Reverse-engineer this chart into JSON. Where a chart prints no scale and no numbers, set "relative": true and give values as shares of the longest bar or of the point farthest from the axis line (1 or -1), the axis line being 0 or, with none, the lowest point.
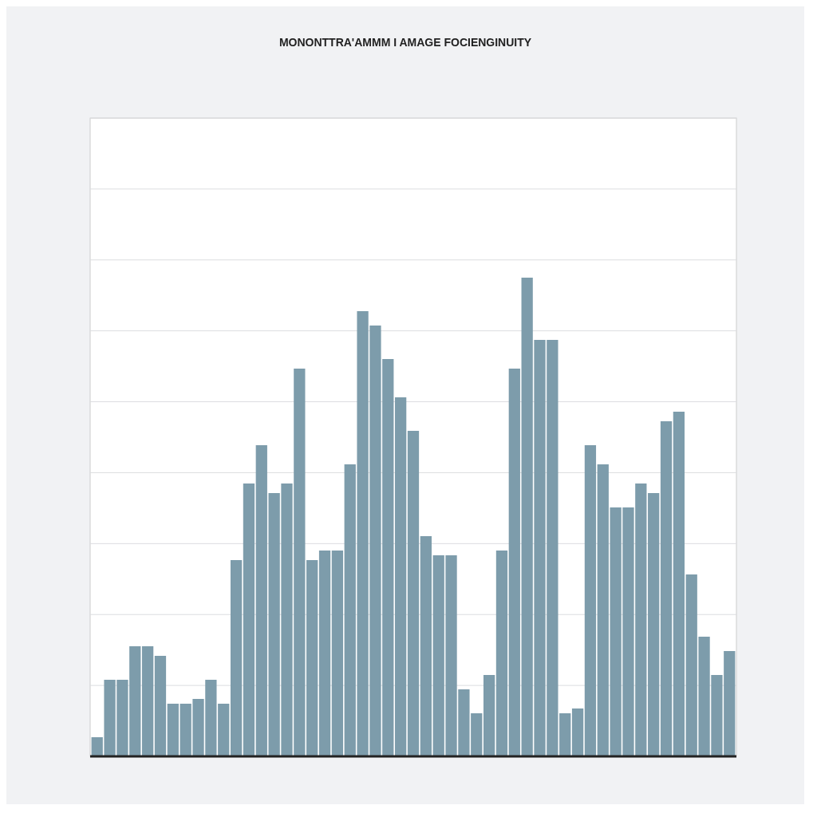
{
  "chart_data": {
    "type": "bar",
    "title": "MONONTTRA'AMMM I AMAGE FOCIENGINUITY",
    "relative": true,
    "color": "#7d9cab",
    "categories": [
      null,
      null,
      null,
      null,
      null,
      null,
      null,
      null,
      null,
      null,
      null,
      null,
      null,
      null,
      null,
      null,
      null,
      null,
      null,
      null,
      null,
      null,
      null,
      null,
      null,
      null,
      null,
      null,
      null,
      null,
      null,
      null,
      null,
      null,
      null,
      null,
      null,
      null,
      null,
      null,
      null,
      null,
      null,
      null,
      null,
      null,
      null,
      null,
      null,
      null,
      null
    ],
    "values": [
      0.04,
      0.16,
      0.16,
      0.23,
      0.23,
      0.21,
      0.11,
      0.11,
      0.12,
      0.16,
      0.11,
      0.41,
      0.57,
      0.65,
      0.55,
      0.57,
      0.81,
      0.41,
      0.43,
      0.43,
      0.61,
      0.93,
      0.9,
      0.83,
      0.75,
      0.68,
      0.46,
      0.42,
      0.42,
      0.14,
      0.09,
      0.17,
      0.43,
      0.81,
      1,
      0.87,
      0.87,
      0.09,
      0.1,
      0.65,
      0.61,
      0.52,
      0.52,
      0.57,
      0.55,
      0.7,
      0.72,
      0.38,
      0.25,
      0.17,
      0.22
    ],
    "grid": true
  }
}
